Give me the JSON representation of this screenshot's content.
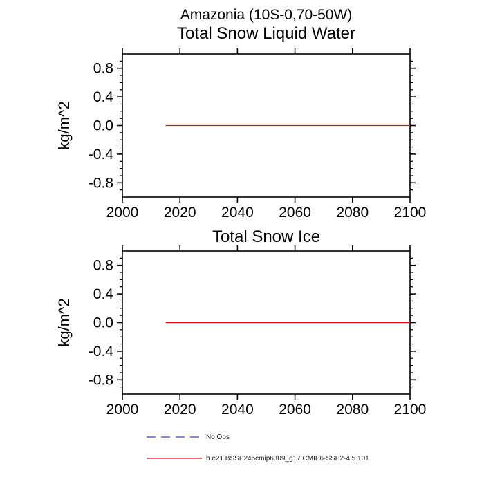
{
  "page": {
    "title": "Amazonia (10S-0,70-50W)"
  },
  "colors": {
    "model_line": "#ff0000",
    "no_obs_line": "#5c5cd6",
    "axis": "#000000"
  },
  "legend": {
    "items": [
      {
        "label": "No Obs",
        "color": "#5c5cd6",
        "style": "dashed"
      },
      {
        "label": "b.e21.BSSP245cmip6.f09_g17.CMIP6-SSP2-4.5.101",
        "color": "#ff0000",
        "style": "solid"
      }
    ]
  },
  "chart_data": [
    {
      "type": "line",
      "title": "Total Snow Liquid Water",
      "xlabel": "",
      "ylabel": "kg/m^2",
      "xlim": [
        2000,
        2100
      ],
      "ylim": [
        -1.0,
        1.0
      ],
      "xticks": [
        2000,
        2020,
        2040,
        2060,
        2080,
        2100
      ],
      "yticks_major": [
        -0.8,
        -0.4,
        0.0,
        0.4,
        0.8
      ],
      "ytick_minor_step": 0.1,
      "grid": false,
      "legend_position": "none",
      "series": [
        {
          "name": "b.e21.BSSP245cmip6.f09_g17.CMIP6-SSP2-4.5.101",
          "color": "#ff0000",
          "style": "solid",
          "x": [
            2015,
            2100
          ],
          "y": [
            0.0,
            0.0
          ]
        }
      ]
    },
    {
      "type": "line",
      "title": "Total Snow Ice",
      "xlabel": "",
      "ylabel": "kg/m^2",
      "xlim": [
        2000,
        2100
      ],
      "ylim": [
        -1.0,
        1.0
      ],
      "xticks": [
        2000,
        2020,
        2040,
        2060,
        2080,
        2100
      ],
      "yticks_major": [
        -0.8,
        -0.4,
        0.0,
        0.4,
        0.8
      ],
      "ytick_minor_step": 0.1,
      "grid": false,
      "legend_position": "none",
      "series": [
        {
          "name": "b.e21.BSSP245cmip6.f09_g17.CMIP6-SSP2-4.5.101",
          "color": "#ff0000",
          "style": "solid",
          "x": [
            2015,
            2100
          ],
          "y": [
            0.0,
            0.0
          ]
        }
      ]
    }
  ]
}
